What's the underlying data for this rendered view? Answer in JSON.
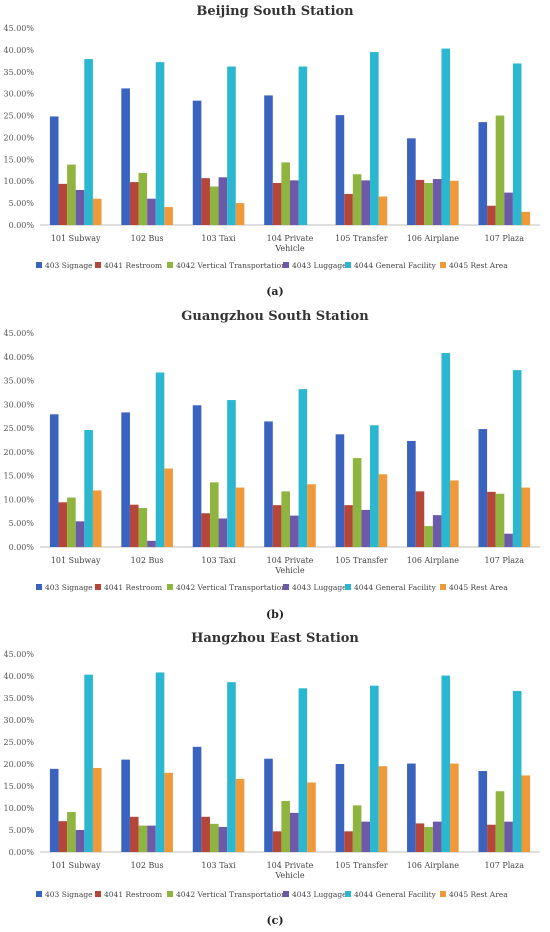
{
  "colors": [
    "#3a62bf",
    "#b5473a",
    "#8fb440",
    "#6c5aa8",
    "#2bb7cf",
    "#ef9a3a"
  ],
  "chart_data": [
    {
      "type": "bar",
      "title": "Beijing South Station",
      "panel": "(a)",
      "ylim": [
        0,
        45
      ],
      "yticks": [
        "0.00%",
        "5.00%",
        "10.00%",
        "15.00%",
        "20.00%",
        "25.00%",
        "30.00%",
        "35.00%",
        "40.00%",
        "45.00%"
      ],
      "categories": [
        [
          "101 Subway"
        ],
        [
          "102 Bus"
        ],
        [
          "103 Taxi"
        ],
        [
          "104 Private",
          "Vehicle"
        ],
        [
          "105 Transfer"
        ],
        [
          "106 Airplane"
        ],
        [
          "107 Plaza"
        ]
      ],
      "series": [
        {
          "name": "403 Signage",
          "values": [
            24.8,
            31.2,
            28.4,
            29.6,
            25.1,
            19.8,
            23.5
          ]
        },
        {
          "name": "4041 Restroom",
          "values": [
            9.4,
            9.8,
            10.7,
            9.6,
            7.1,
            10.3,
            4.4
          ]
        },
        {
          "name": "4042 Vertical Transportation",
          "values": [
            13.8,
            11.9,
            8.8,
            14.3,
            11.6,
            9.6,
            25.0
          ]
        },
        {
          "name": "4043 Luggage",
          "values": [
            8.0,
            6.0,
            10.9,
            10.2,
            10.2,
            10.5,
            7.4
          ]
        },
        {
          "name": "4044 General Facility",
          "values": [
            37.9,
            37.2,
            36.2,
            36.2,
            39.5,
            40.3,
            36.9
          ]
        },
        {
          "name": "4045 Rest Area",
          "values": [
            6.0,
            4.1,
            5.0,
            0.0,
            6.5,
            10.1,
            3.0
          ]
        }
      ]
    },
    {
      "type": "bar",
      "title": "Guangzhou South Station",
      "panel": "(b)",
      "ylim": [
        0,
        45
      ],
      "yticks": [
        "0.00%",
        "5.00%",
        "10.00%",
        "15.00%",
        "20.00%",
        "25.00%",
        "30.00%",
        "35.00%",
        "40.00%",
        "45.00%"
      ],
      "categories": [
        [
          "101 Subway"
        ],
        [
          "102 Bus"
        ],
        [
          "103 Taxi"
        ],
        [
          "104 Private",
          "Vehicle"
        ],
        [
          "105 Transfer"
        ],
        [
          "106 Airplane"
        ],
        [
          "107 Plaza"
        ]
      ],
      "series": [
        {
          "name": "403 Signage",
          "values": [
            27.9,
            28.3,
            29.8,
            26.4,
            23.7,
            22.3,
            24.8
          ]
        },
        {
          "name": "4041 Restroom",
          "values": [
            9.4,
            8.9,
            7.1,
            8.8,
            8.8,
            11.7,
            11.6
          ]
        },
        {
          "name": "4042 Vertical Transportation",
          "values": [
            10.4,
            8.2,
            13.6,
            11.7,
            18.7,
            4.4,
            11.2
          ]
        },
        {
          "name": "4043 Luggage",
          "values": [
            5.4,
            1.3,
            6.0,
            6.6,
            7.8,
            6.7,
            2.8
          ]
        },
        {
          "name": "4044 General Facility",
          "values": [
            24.6,
            36.7,
            30.9,
            33.2,
            25.6,
            40.8,
            37.2
          ]
        },
        {
          "name": "4045 Rest Area",
          "values": [
            11.9,
            16.5,
            12.5,
            13.2,
            15.3,
            14.0,
            12.5
          ]
        }
      ]
    },
    {
      "type": "bar",
      "title": "Hangzhou East Station",
      "panel": "(c)",
      "ylim": [
        0,
        45
      ],
      "yticks": [
        "0.00%",
        "5.00%",
        "10.00%",
        "15.00%",
        "20.00%",
        "25.00%",
        "30.00%",
        "35.00%",
        "40.00%",
        "45.00%"
      ],
      "categories": [
        [
          "101 Subway"
        ],
        [
          "102 Bus"
        ],
        [
          "103 Taxi"
        ],
        [
          "104 Private",
          "Vehicle"
        ],
        [
          "105 Transfer"
        ],
        [
          "106 Airplane"
        ],
        [
          "107 Plaza"
        ]
      ],
      "series": [
        {
          "name": "403 Signage",
          "values": [
            18.9,
            21.0,
            23.9,
            21.2,
            20.0,
            20.1,
            18.4
          ]
        },
        {
          "name": "4041 Restroom",
          "values": [
            7.0,
            8.0,
            8.0,
            4.7,
            4.7,
            6.5,
            6.2
          ]
        },
        {
          "name": "4042 Vertical Transportation",
          "values": [
            9.1,
            6.0,
            6.4,
            11.6,
            10.6,
            5.7,
            13.8
          ]
        },
        {
          "name": "4043 Luggage",
          "values": [
            5.0,
            6.0,
            5.7,
            8.9,
            6.9,
            6.9,
            6.9
          ]
        },
        {
          "name": "4044 General Facility",
          "values": [
            40.3,
            40.8,
            38.6,
            37.2,
            37.8,
            40.1,
            36.6
          ]
        },
        {
          "name": "4045 Rest Area",
          "values": [
            19.1,
            18.0,
            16.6,
            15.8,
            19.5,
            20.1,
            17.4
          ]
        }
      ]
    }
  ]
}
